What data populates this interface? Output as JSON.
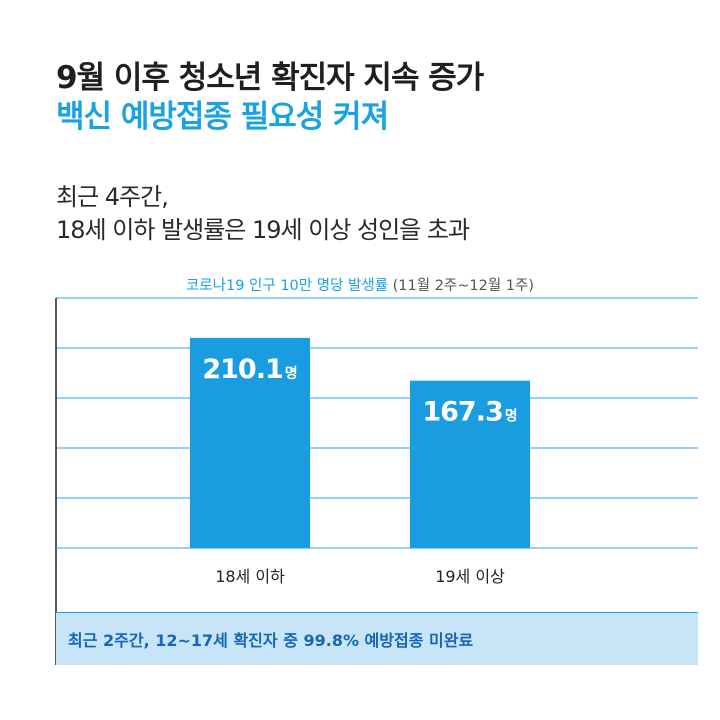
{
  "header": {
    "title_line1": "9월 이후 청소년 확진자 지속 증가",
    "title_line2": "백신 예방접종 필요성 커져"
  },
  "subtitle": {
    "line1": "최근 4주간,",
    "line2": "18세 이하 발생률은 19세 이상 성인을 초과"
  },
  "chart_data": {
    "type": "bar",
    "title": "코로나19 인구 10만 명당 발생률",
    "period": "(11월 2주~12월 1주)",
    "categories": [
      "18세 이하",
      "19세 이상"
    ],
    "values": [
      210.1,
      167.3
    ],
    "value_unit": "명",
    "value_labels": [
      "210.1",
      "167.3"
    ],
    "ylim": [
      0,
      250
    ],
    "grid": true,
    "colors": {
      "bar": "#1a9de0",
      "grid": "#2ea6e3",
      "accent": "#1aa3e0"
    }
  },
  "note": {
    "text": "최근 2주간, 12~17세 확진자 중 99.8% 예방접종 미완료",
    "background": "#c8e5f7",
    "color": "#1565b8"
  }
}
